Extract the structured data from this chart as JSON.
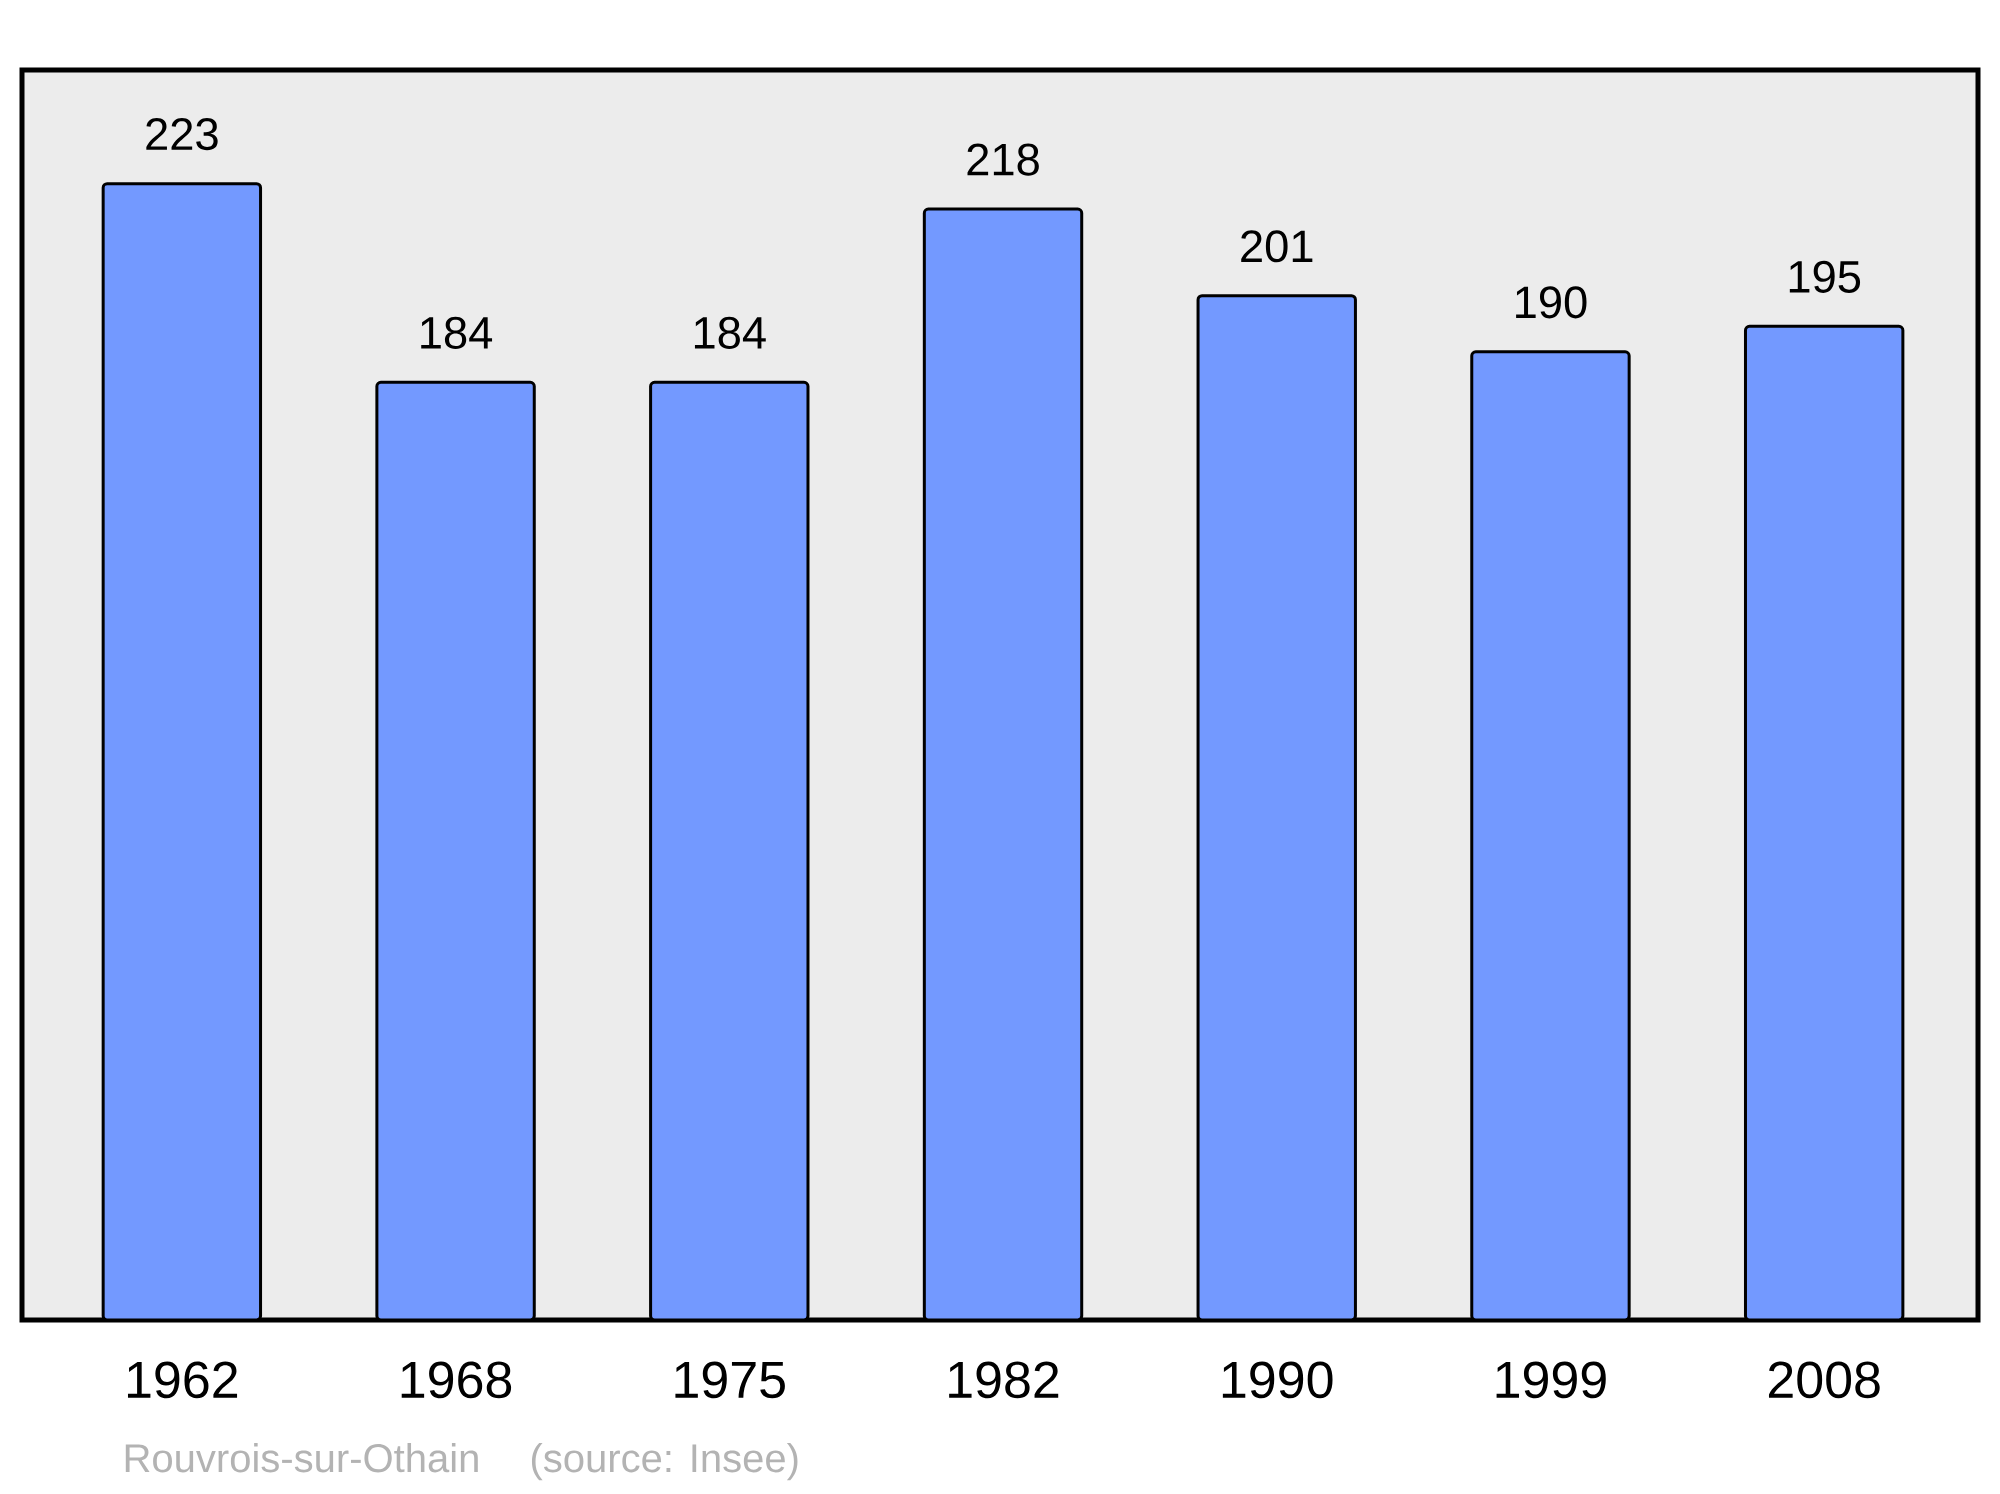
{
  "chart_data": {
    "type": "bar",
    "categories": [
      "1962",
      "1968",
      "1975",
      "1982",
      "1990",
      "1999",
      "2008"
    ],
    "values": [
      223,
      184,
      184,
      218,
      201,
      190,
      195
    ],
    "color": "#7399ff",
    "data_labels": true,
    "annotations": [
      "Rouvrois-sur-Othain",
      "(source: Insee)"
    ]
  }
}
